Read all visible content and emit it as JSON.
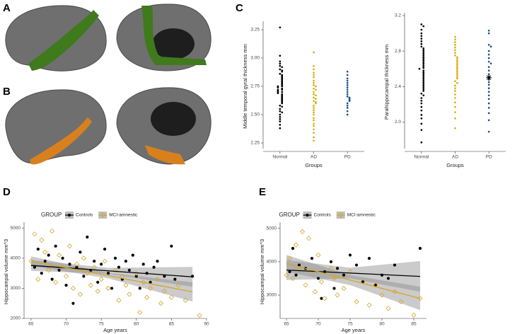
{
  "panel_labels": [
    "A",
    "B",
    "C",
    "D",
    "E"
  ],
  "chart_data": [
    {
      "type": "beeswarm",
      "ylabel": "Middle temporal gyral thickness mm",
      "xlabel": "Groups",
      "categories": [
        "Normal",
        "AD",
        "PD"
      ],
      "colors": [
        "#000000",
        "#d9ad14",
        "#1f4f86"
      ],
      "ylim": [
        2.2,
        3.3
      ],
      "yticks": [
        {
          "value": 2.25,
          "label": "2.25"
        },
        {
          "value": 2.5,
          "label": "2.50"
        },
        {
          "value": 2.75,
          "label": "2.75"
        },
        {
          "value": 3,
          "label": "3.00"
        },
        {
          "value": 3.25,
          "label": "3.25"
        }
      ],
      "values": [
        [
          3.27,
          3.02,
          2.97,
          2.95,
          2.93,
          2.92,
          2.9,
          2.89,
          2.88,
          2.86,
          2.85,
          2.84,
          2.83,
          2.82,
          2.81,
          2.8,
          2.79,
          2.78,
          2.77,
          2.76,
          2.75,
          2.75,
          2.74,
          2.73,
          2.72,
          2.72,
          2.71,
          2.7,
          2.7,
          2.69,
          2.68,
          2.67,
          2.66,
          2.65,
          2.64,
          2.63,
          2.62,
          2.61,
          2.6,
          2.58,
          2.57,
          2.55,
          2.53,
          2.52,
          2.5,
          2.48,
          2.46,
          2.44,
          2.41,
          2.38
        ],
        [
          3.05,
          2.93,
          2.9,
          2.87,
          2.85,
          2.83,
          2.8,
          2.78,
          2.76,
          2.75,
          2.73,
          2.72,
          2.7,
          2.68,
          2.67,
          2.65,
          2.64,
          2.62,
          2.61,
          2.6,
          2.58,
          2.56,
          2.54,
          2.52,
          2.5,
          2.47,
          2.45,
          2.42,
          2.4,
          2.37,
          2.34,
          2.3,
          2.27
        ],
        [
          2.88,
          2.85,
          2.82,
          2.8,
          2.78,
          2.76,
          2.74,
          2.72,
          2.7,
          2.68,
          2.66,
          2.65,
          2.64,
          2.63,
          2.62,
          2.6,
          2.58,
          2.56,
          2.53,
          2.5
        ]
      ]
    },
    {
      "type": "beeswarm",
      "ylabel": "Parahippocampal thickness mm",
      "xlabel": "Groups",
      "categories": [
        "Normal",
        "AD",
        "PD"
      ],
      "colors": [
        "#000000",
        "#d9ad14",
        "#1f4f86"
      ],
      "ylim": [
        1.7,
        3.2
      ],
      "yticks": [
        {
          "value": 2,
          "label": "2.0"
        },
        2.4,
        2.8,
        3.2
      ],
      "values": [
        [
          3.1,
          3.08,
          3.04,
          3.0,
          2.97,
          2.94,
          2.91,
          2.88,
          2.85,
          2.83,
          2.81,
          2.79,
          2.77,
          2.75,
          2.73,
          2.72,
          2.7,
          2.69,
          2.67,
          2.66,
          2.64,
          2.62,
          2.61,
          2.6,
          2.58,
          2.56,
          2.55,
          2.53,
          2.51,
          2.49,
          2.47,
          2.45,
          2.43,
          2.41,
          2.39,
          2.37,
          2.35,
          2.32,
          2.3,
          2.27,
          2.24,
          2.21,
          2.17,
          2.13,
          2.08,
          2.04,
          1.98,
          1.91,
          1.77
        ],
        [
          2.96,
          2.93,
          2.9,
          2.87,
          2.84,
          2.81,
          2.78,
          2.75,
          2.73,
          2.71,
          2.69,
          2.67,
          2.65,
          2.63,
          2.61,
          2.59,
          2.57,
          2.55,
          2.53,
          2.51,
          2.49,
          2.46,
          2.44,
          2.41,
          2.38,
          2.35,
          2.31,
          2.27,
          2.22,
          2.17,
          2.11,
          2.04,
          1.93
        ],
        [
          3.03,
          3.0,
          2.87,
          2.85,
          2.8,
          2.76,
          2.72,
          2.68,
          2.66,
          2.62,
          2.58,
          2.54,
          2.51,
          2.48,
          2.45,
          2.42,
          2.38,
          2.34,
          2.3,
          2.26,
          2.21,
          2.16,
          2.1,
          2.02,
          1.89
        ]
      ],
      "star_values": [
        null,
        null,
        2.5
      ]
    },
    {
      "type": "scatter",
      "ylabel": "Hippocampal volume mm^3",
      "xlabel": "Age years",
      "legend_title": "GROUP",
      "xlim": [
        64,
        90
      ],
      "xticks": [
        65,
        70,
        75,
        80,
        85,
        90
      ],
      "ylim": [
        2000,
        5100
      ],
      "yticks": [
        2000,
        3000,
        4000,
        5000
      ],
      "series": [
        {
          "name": "Controls",
          "color": "#000000",
          "marker": "circle",
          "x": [
            65.5,
            66,
            66.5,
            67,
            67.5,
            68,
            68.5,
            69,
            69.5,
            70,
            70.5,
            71,
            71.5,
            72,
            72.5,
            73,
            73.5,
            74,
            74.5,
            75,
            75.5,
            76,
            76.5,
            77,
            77.5,
            78,
            78.5,
            79,
            79.5,
            80,
            80.5,
            81,
            81.5,
            82,
            82.5,
            83,
            84,
            85,
            85.5,
            88
          ],
          "y": [
            3700,
            4300,
            3500,
            3900,
            4100,
            3300,
            4400,
            3600,
            4000,
            3100,
            3800,
            2500,
            3700,
            4200,
            3400,
            4700,
            3600,
            3900,
            3200,
            3800,
            4300,
            3500,
            3000,
            4000,
            3700,
            3300,
            3900,
            3600,
            4100,
            3400,
            3000,
            3800,
            3500,
            3200,
            3700,
            3900,
            3400,
            4400,
            3300,
            3400
          ],
          "fit": {
            "x": [
              65,
              76,
              88
            ],
            "y": [
              3760,
              3580,
              3380
            ],
            "lower": [
              3580,
              3480,
              3050
            ],
            "upper": [
              3940,
              3680,
              3710
            ]
          }
        },
        {
          "name": "MCI-amnestic",
          "color": "#d4a52a",
          "marker": "diamond",
          "x": [
            65,
            65.5,
            66,
            66.5,
            67,
            67.5,
            68,
            68.5,
            69,
            69.5,
            70,
            70.5,
            71,
            71.5,
            72,
            72.5,
            73,
            73.5,
            74,
            74.5,
            75,
            75.5,
            76,
            77,
            77.5,
            78,
            78.5,
            79,
            80,
            80.5,
            81,
            81.5,
            82,
            83,
            83.5,
            84,
            85,
            86,
            87,
            89
          ],
          "y": [
            3900,
            4800,
            3300,
            4600,
            4200,
            3600,
            4900,
            3200,
            4100,
            3700,
            3400,
            4400,
            3000,
            3800,
            2800,
            4000,
            3500,
            3100,
            3700,
            2900,
            3300,
            3900,
            3000,
            3600,
            2600,
            3400,
            3100,
            2800,
            3500,
            2200,
            3200,
            2700,
            3000,
            3300,
            2500,
            2900,
            2700,
            3100,
            2600,
            2100
          ],
          "fit": {
            "x": [
              65,
              76,
              88
            ],
            "y": [
              3900,
              3420,
              2880
            ],
            "lower": [
              3740,
              3330,
              2560
            ],
            "upper": [
              4060,
              3510,
              3200
            ]
          }
        }
      ]
    },
    {
      "type": "scatter",
      "ylabel": "Hippocampal volume mm^3",
      "xlabel": "Age years",
      "legend_title": "GROUP",
      "xlim": [
        64,
        87
      ],
      "xticks": [
        65,
        70,
        75,
        80,
        85
      ],
      "ylim": [
        2300,
        5100
      ],
      "yticks": [
        3000,
        4000,
        5000
      ],
      "series": [
        {
          "name": "Controls",
          "color": "#000000",
          "marker": "circle",
          "x": [
            65.5,
            66,
            66.5,
            67,
            68,
            69,
            70,
            70.5,
            71,
            72,
            72.5,
            73,
            74,
            75,
            76,
            77,
            78,
            79,
            80,
            81,
            82,
            86
          ],
          "y": [
            3700,
            4400,
            3600,
            3900,
            3800,
            4100,
            3500,
            2900,
            3700,
            4000,
            3200,
            3800,
            3600,
            4200,
            3900,
            3400,
            4100,
            3300,
            3600,
            3500,
            3900,
            4400
          ],
          "fit": {
            "x": [
              65,
              75,
              86
            ],
            "y": [
              3750,
              3660,
              3560
            ],
            "lower": [
              3450,
              3500,
              3100
            ],
            "upper": [
              4050,
              3820,
              4020
            ]
          }
        },
        {
          "name": "MCI-amnestic",
          "color": "#d4a52a",
          "marker": "diamond",
          "x": [
            65,
            65.5,
            66,
            66.5,
            67,
            67.5,
            68,
            68.5,
            69,
            69.5,
            70,
            70.5,
            71,
            72,
            72.5,
            73,
            74,
            75,
            76,
            77,
            78,
            79,
            80,
            81,
            82,
            83,
            85,
            86
          ],
          "y": [
            3600,
            4100,
            3500,
            4500,
            3800,
            4900,
            3300,
            4700,
            3700,
            3100,
            4200,
            3400,
            2900,
            3800,
            3500,
            3000,
            3200,
            3700,
            2800,
            3400,
            2700,
            3300,
            3000,
            2600,
            3100,
            2800,
            2400,
            2900
          ],
          "fit": {
            "x": [
              65,
              75,
              86
            ],
            "y": [
              3950,
              3450,
              2900
            ],
            "lower": [
              3700,
              3300,
              2550
            ],
            "upper": [
              4200,
              3600,
              3250
            ]
          }
        }
      ]
    }
  ]
}
